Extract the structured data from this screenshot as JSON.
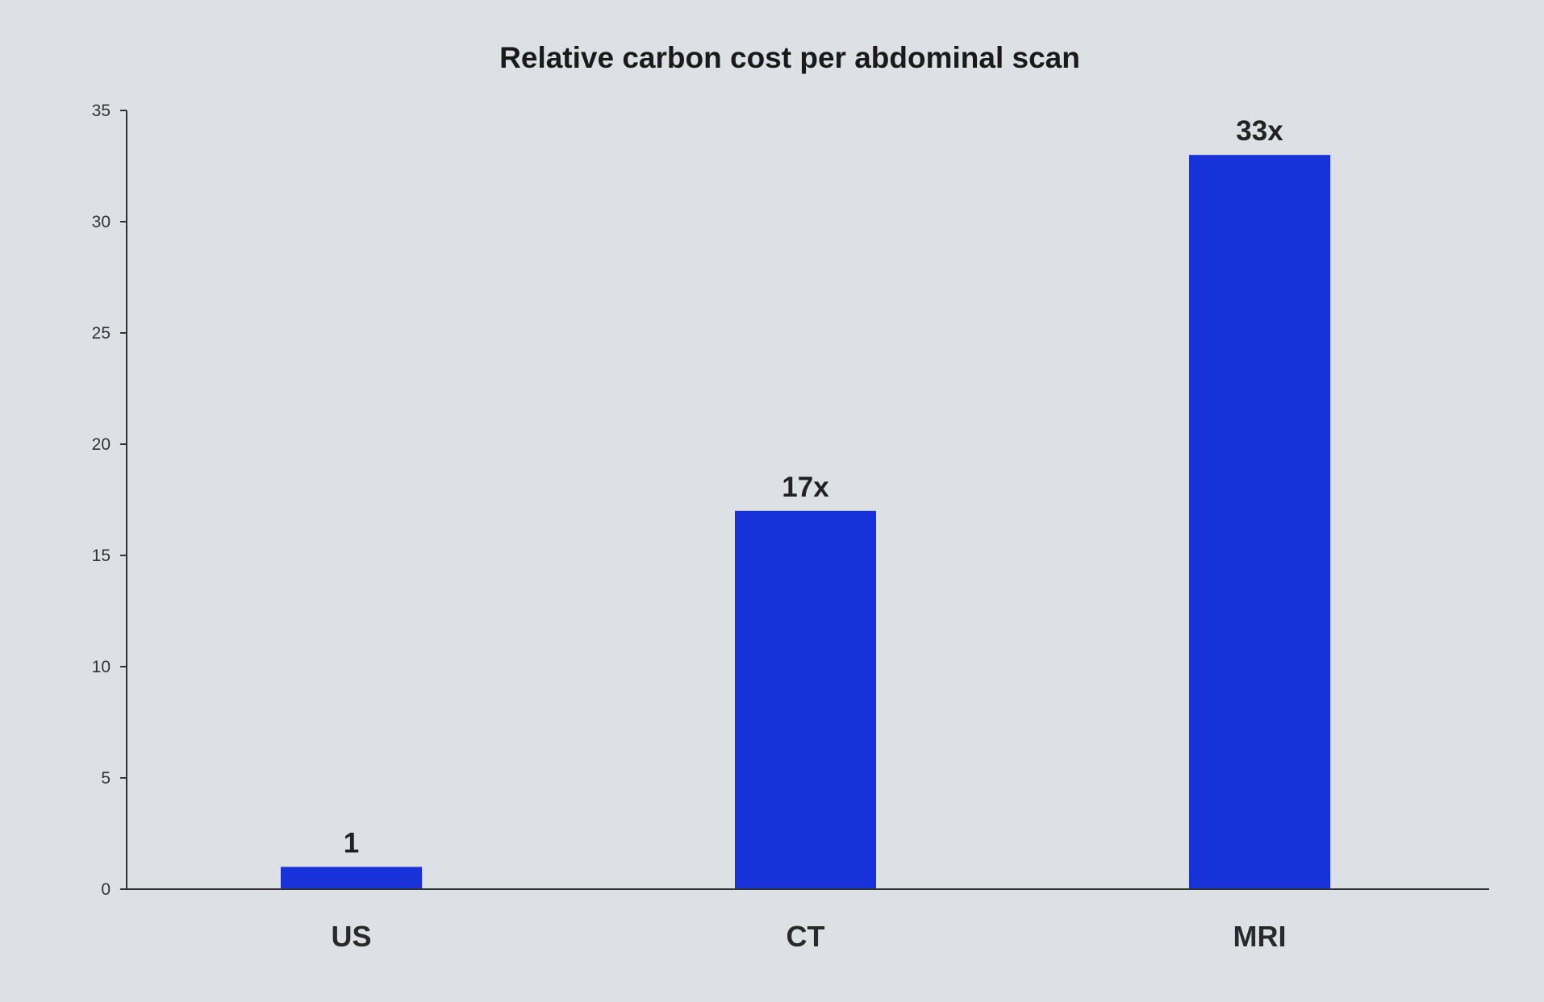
{
  "chart_data": {
    "type": "bar",
    "title": "Relative carbon cost per abdominal scan",
    "xlabel": "",
    "ylabel": "",
    "categories": [
      "US",
      "CT",
      "MRI"
    ],
    "values": [
      1,
      17,
      33
    ],
    "data_labels": [
      "1",
      "17x",
      "33x"
    ],
    "ylim": [
      0,
      35
    ],
    "yticks": [
      0,
      5,
      10,
      15,
      20,
      25,
      30,
      35
    ],
    "grid": false,
    "legend": "none",
    "bar_color": "#1632d8",
    "background_color": "#dde1e6"
  }
}
